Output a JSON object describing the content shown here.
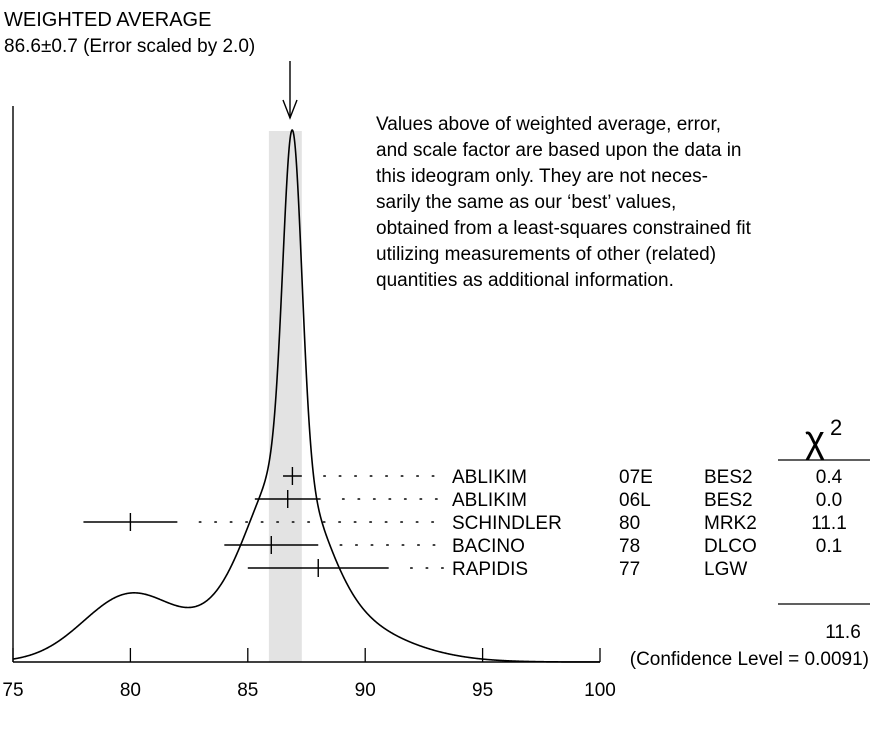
{
  "chart_data": {
    "type": "ideogram",
    "title": "WEIGHTED AVERAGE",
    "subtitle": "86.6±0.7 (Error scaled by 2.0)",
    "note_lines": [
      "Values above of weighted average, error,",
      "and scale factor are based upon the data in",
      "this ideogram only.  They are not neces-",
      "sarily the same as our ‘best’ values,",
      "obtained from a least-squares constrained fit",
      "utilizing measurements of other (related)",
      "quantities as additional information."
    ],
    "xlim": [
      75,
      100
    ],
    "x_ticks": [
      75,
      80,
      85,
      90,
      95,
      100
    ],
    "x_tick_labels": [
      "75",
      "80",
      "85",
      "90",
      "95",
      "100"
    ],
    "weighted_average": {
      "value": 86.6,
      "error": 0.7,
      "scale_factor": 2.0
    },
    "chi2_header": "χ",
    "chi2_superscript": "2",
    "measurements": [
      {
        "author": "ABLIKIM",
        "year": "07E",
        "tecn": "BES2",
        "chi2": "0.4",
        "value": 86.9,
        "error": 0.4
      },
      {
        "author": "ABLIKIM",
        "year": "06L",
        "tecn": "BES2",
        "chi2": "0.0",
        "value": 86.7,
        "error": 1.4
      },
      {
        "author": "SCHINDLER",
        "year": "80",
        "tecn": "MRK2",
        "chi2": "11.1",
        "value": 80.0,
        "error": 2.0
      },
      {
        "author": "BACINO",
        "year": "78",
        "tecn": "DLCO",
        "chi2": "0.1",
        "value": 86.0,
        "error": 2.0
      },
      {
        "author": "RAPIDIS",
        "year": "77",
        "tecn": "LGW",
        "chi2": "",
        "value": 88.0,
        "error": 3.0
      }
    ],
    "chi2_total": "11.6",
    "confidence_level": "(Confidence Level = 0.0091)"
  }
}
